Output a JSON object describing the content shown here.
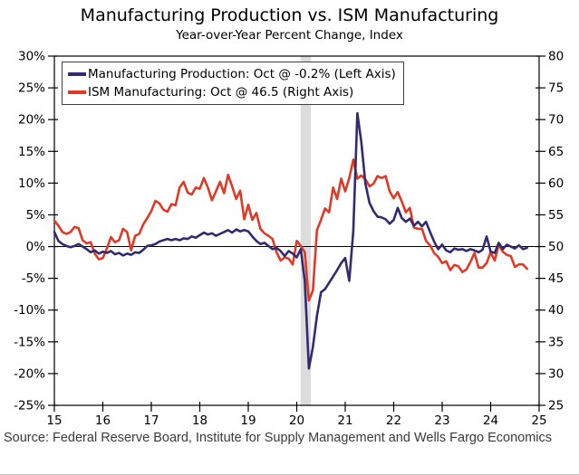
{
  "header": {
    "title": "Manufacturing Production vs. ISM Manufacturing",
    "subtitle": "Year-over-Year Percent Change, Index"
  },
  "legend": {
    "items": [
      {
        "id": "manufacturing-production",
        "label": "Manufacturing Production: Oct @ -0.2% (Left Axis)",
        "color": "#322b70"
      },
      {
        "id": "ism-manufacturing",
        "label": "ISM Manufacturing: Oct @ 46.5 (Right Axis)",
        "color": "#de3a26"
      }
    ]
  },
  "footer": {
    "source": "Source: Federal Reserve Board, Institute for Supply Management and Wells Fargo Economics"
  },
  "chart_data": {
    "type": "line",
    "title": "Manufacturing Production vs. ISM Manufacturing",
    "subtitle": "Year-over-Year Percent Change, Index",
    "grid": "off",
    "legend_position": "top-left-inside",
    "x_axis": {
      "min": 15,
      "max": 25,
      "tick_values": [
        15,
        16,
        17,
        18,
        19,
        20,
        21,
        22,
        23,
        24,
        25
      ],
      "tick_labels": [
        "15",
        "16",
        "17",
        "18",
        "19",
        "20",
        "21",
        "22",
        "23",
        "24",
        "25"
      ],
      "points_per_unit": 12
    },
    "left_axis": {
      "title": "Year-over-Year Percent Change",
      "min": -25,
      "max": 30,
      "tick_values": [
        30,
        25,
        20,
        15,
        10,
        5,
        0,
        -5,
        -10,
        -15,
        -20,
        -25
      ],
      "tick_labels": [
        "30%",
        "25%",
        "20%",
        "15%",
        "10%",
        "5%",
        "0%",
        "-5%",
        "-10%",
        "-15%",
        "-20%",
        "-25%"
      ]
    },
    "right_axis": {
      "title": "Index",
      "min": 25,
      "max": 80,
      "tick_values": [
        80,
        75,
        70,
        65,
        60,
        55,
        50,
        45,
        40,
        35,
        30,
        25
      ],
      "tick_labels": [
        "80",
        "75",
        "70",
        "65",
        "60",
        "55",
        "50",
        "45",
        "40",
        "35",
        "30",
        "25"
      ]
    },
    "zero_line_left_value": 0,
    "recession_band": {
      "x_start": 20.08,
      "x_end": 20.29,
      "color": "#dcdcdc"
    },
    "series": [
      {
        "id": "manufacturing-production",
        "name": "Manufacturing Production",
        "legend_label": "Manufacturing Production: Oct @ -0.2% (Left Axis)",
        "latest_label": "Oct @ -0.2%",
        "axis": "left",
        "color": "#322b70",
        "first_point_x": 15,
        "frequency": "monthly",
        "values": [
          2.3,
          0.9,
          0.4,
          0.1,
          -0.1,
          0.1,
          0.4,
          0.0,
          -0.4,
          -0.9,
          -0.6,
          -1.1,
          -0.8,
          -1.0,
          -0.7,
          -1.2,
          -1.0,
          -1.4,
          -1.1,
          -1.3,
          -0.9,
          -1.0,
          -0.5,
          0.1,
          0.2,
          0.4,
          0.8,
          1.0,
          1.2,
          1.0,
          1.2,
          1.0,
          1.3,
          1.2,
          1.6,
          1.4,
          1.8,
          2.2,
          1.9,
          2.1,
          1.7,
          2.0,
          2.3,
          2.6,
          2.2,
          2.7,
          2.4,
          2.6,
          2.4,
          1.6,
          0.9,
          0.4,
          0.6,
          0.1,
          -0.4,
          -0.2,
          -0.7,
          -1.5,
          -0.7,
          -1.1,
          -1.7,
          -0.4,
          -5.5,
          -19.2,
          -15.8,
          -10.9,
          -7.2,
          -6.7,
          -5.7,
          -4.7,
          -3.7,
          -2.6,
          -1.8,
          -5.4,
          2.5,
          21.0,
          16.4,
          9.9,
          6.9,
          5.6,
          4.7,
          4.6,
          4.3,
          3.6,
          4.2,
          6.1,
          4.5,
          3.9,
          4.4,
          3.3,
          3.9,
          3.2,
          3.9,
          2.3,
          0.8,
          -0.4,
          0.3,
          -0.6,
          -0.9,
          -0.3,
          -0.5,
          -0.4,
          -0.7,
          -0.4,
          -0.6,
          -0.9,
          -0.5,
          1.6,
          -0.8,
          -1.0,
          0.6,
          -0.4,
          0.3,
          0.0,
          -0.3,
          0.2,
          -0.4,
          -0.2
        ]
      },
      {
        "id": "ism-manufacturing",
        "name": "ISM Manufacturing",
        "legend_label": "ISM Manufacturing: Oct @ 46.5 (Right Axis)",
        "latest_label": "Oct @ 46.5",
        "axis": "right",
        "color": "#de3a26",
        "first_point_x": 15,
        "frequency": "monthly",
        "values": [
          54.1,
          53.3,
          52.3,
          52.0,
          52.3,
          53.1,
          52.9,
          51.0,
          50.5,
          50.7,
          48.9,
          48.0,
          48.2,
          49.7,
          51.5,
          50.7,
          51.0,
          52.8,
          52.3,
          49.4,
          51.7,
          52.0,
          53.5,
          54.5,
          55.6,
          57.2,
          56.8,
          55.8,
          55.5,
          56.7,
          56.5,
          59.3,
          60.2,
          58.5,
          58.2,
          59.3,
          59.1,
          60.8,
          59.3,
          57.3,
          58.7,
          60.2,
          58.4,
          61.3,
          59.5,
          57.5,
          58.8,
          54.3,
          56.6,
          54.2,
          55.3,
          52.8,
          52.1,
          51.7,
          51.2,
          49.1,
          47.8,
          48.3,
          48.1,
          47.2,
          50.9,
          50.1,
          49.1,
          41.5,
          43.1,
          52.6,
          54.2,
          56.0,
          55.4,
          59.3,
          57.5,
          60.7,
          58.7,
          60.8,
          63.7,
          60.7,
          61.2,
          60.6,
          59.5,
          59.9,
          61.1,
          60.8,
          61.1,
          58.7,
          57.6,
          58.6,
          57.1,
          55.4,
          56.1,
          53.0,
          52.8,
          52.8,
          50.9,
          50.2,
          49.0,
          48.4,
          47.4,
          47.7,
          46.3,
          47.1,
          46.9,
          46.0,
          46.4,
          47.6,
          49.0,
          46.7,
          46.7,
          47.4,
          49.1,
          47.8,
          50.3,
          49.2,
          48.7,
          48.5,
          46.8,
          47.2,
          47.2,
          46.5
        ]
      }
    ],
    "source": "Source: Federal Reserve Board, Institute for Supply Management and Wells Fargo Economics"
  }
}
